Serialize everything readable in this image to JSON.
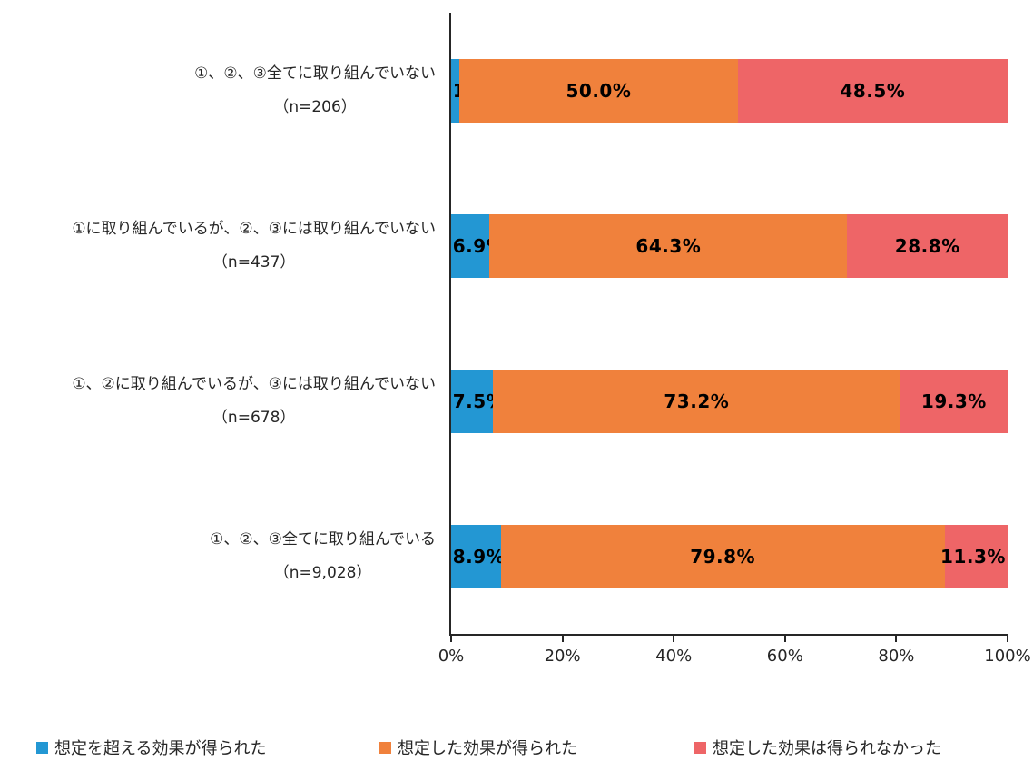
{
  "chart_data": {
    "type": "bar",
    "orientation": "horizontal",
    "stacked": true,
    "title": "",
    "xlabel": "",
    "ylabel": "",
    "xlim": [
      0,
      100
    ],
    "x_ticks": [
      "0%",
      "20%",
      "40%",
      "60%",
      "80%",
      "100%"
    ],
    "grid": false,
    "legend_position": "bottom",
    "categories": [
      {
        "label": "①、②、③全てに取り組んでいない",
        "n_label": "（n=206）"
      },
      {
        "label": "①に取り組んでいるが、②、③には取り組んでいない",
        "n_label": "（n=437）"
      },
      {
        "label": "①、②に取り組んでいるが、③には取り組んでいない",
        "n_label": "（n=678）"
      },
      {
        "label": "①、②、③全てに取り組んでいる",
        "n_label": "（n=9,028）"
      }
    ],
    "series": [
      {
        "name": "想定を超える効果が得られた",
        "color": "#2397D3",
        "values": [
          1.5,
          6.9,
          7.5,
          8.9
        ]
      },
      {
        "name": "想定した効果が得られた",
        "color": "#F0813C",
        "values": [
          50.0,
          64.3,
          73.2,
          79.8
        ]
      },
      {
        "name": "想定した効果は得られなかった",
        "color": "#EE6567",
        "values": [
          48.5,
          28.8,
          19.3,
          11.3
        ]
      }
    ],
    "value_labels": [
      [
        "1.5%",
        "50.0%",
        "48.5%"
      ],
      [
        "6.9%",
        "64.3%",
        "28.8%"
      ],
      [
        "7.5%",
        "73.2%",
        "19.3%"
      ],
      [
        "8.9%",
        "79.8%",
        "11.3%"
      ]
    ]
  },
  "legend": {
    "items": [
      {
        "label": "想定を超える効果が得られた",
        "color": "#2397D3"
      },
      {
        "label": "想定した効果が得られた",
        "color": "#F0813C"
      },
      {
        "label": "想定した効果は得られなかった",
        "color": "#EE6567"
      }
    ]
  },
  "colors": {
    "axis": "#262626",
    "value_label_text": "#000000",
    "background": "#FFFFFF"
  }
}
